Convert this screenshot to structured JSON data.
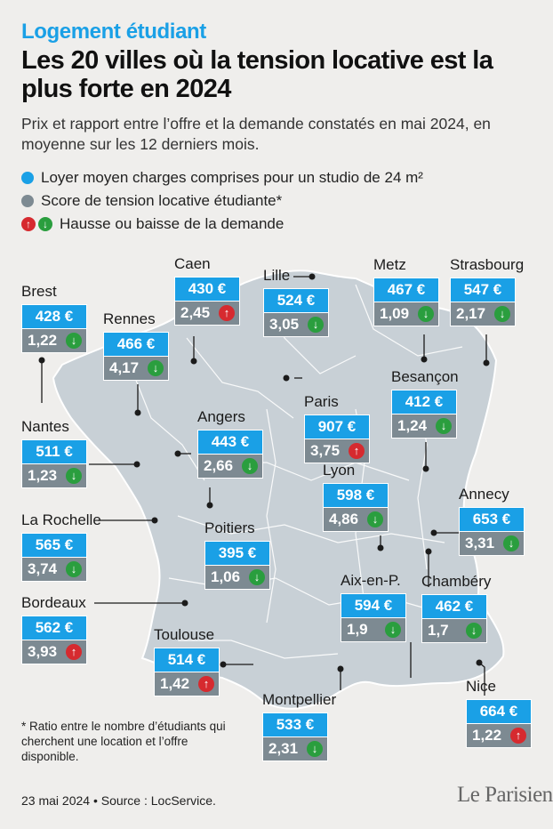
{
  "header": {
    "kicker": "Logement étudiant",
    "title": "Les 20 villes où la tension locative est la plus forte en 2024",
    "subtitle": "Prix et rapport entre l’offre et la demande constatés en mai 2024, en moyenne sur les 12 derniers mois."
  },
  "legend": {
    "rent": "Loyer moyen charges comprises pour un studio de 24 m²",
    "score": "Score de tension locative étudiante*",
    "trend": "Hausse ou baisse de la demande"
  },
  "icons": {
    "up": "arrow-up-icon",
    "down": "arrow-down-icon"
  },
  "colors": {
    "price": "#1aa0e6",
    "score": "#7d8a92",
    "up": "#d62a2f",
    "down": "#2a9e3e",
    "map": "#c8d0d6"
  },
  "cities": [
    {
      "name": "Brest",
      "rent": "428 €",
      "score": "1,22",
      "trend": "down"
    },
    {
      "name": "Rennes",
      "rent": "466 €",
      "score": "4,17",
      "trend": "down"
    },
    {
      "name": "Caen",
      "rent": "430 €",
      "score": "2,45",
      "trend": "up"
    },
    {
      "name": "Lille",
      "rent": "524 €",
      "score": "3,05",
      "trend": "down"
    },
    {
      "name": "Metz",
      "rent": "467 €",
      "score": "1,09",
      "trend": "down"
    },
    {
      "name": "Strasbourg",
      "rent": "547 €",
      "score": "2,17",
      "trend": "down"
    },
    {
      "name": "Paris",
      "rent": "907 €",
      "score": "3,75",
      "trend": "up"
    },
    {
      "name": "Besançon",
      "rent": "412 €",
      "score": "1,24",
      "trend": "down"
    },
    {
      "name": "Nantes",
      "rent": "511 €",
      "score": "1,23",
      "trend": "down"
    },
    {
      "name": "Angers",
      "rent": "443 €",
      "score": "2,66",
      "trend": "down"
    },
    {
      "name": "Lyon",
      "rent": "598 €",
      "score": "4,86",
      "trend": "down"
    },
    {
      "name": "Annecy",
      "rent": "653 €",
      "score": "3,31",
      "trend": "down"
    },
    {
      "name": "La Rochelle",
      "rent": "565 €",
      "score": "3,74",
      "trend": "down"
    },
    {
      "name": "Poitiers",
      "rent": "395 €",
      "score": "1,06",
      "trend": "down"
    },
    {
      "name": "Aix-en-P.",
      "rent": "594 €",
      "score": "1,9",
      "trend": "down"
    },
    {
      "name": "Chambéry",
      "rent": "462 €",
      "score": "1,7",
      "trend": "down"
    },
    {
      "name": "Bordeaux",
      "rent": "562 €",
      "score": "3,93",
      "trend": "up"
    },
    {
      "name": "Toulouse",
      "rent": "514 €",
      "score": "1,42",
      "trend": "up"
    },
    {
      "name": "Montpellier",
      "rent": "533 €",
      "score": "2,31",
      "trend": "down"
    },
    {
      "name": "Nice",
      "rent": "664 €",
      "score": "1,22",
      "trend": "up"
    }
  ],
  "footnote": "* Ratio entre le nombre d’étudiants qui cherchent une location et l’offre disponible.",
  "source": "23 mai 2024 • Source : LocService.",
  "logo": "Le Parisien"
}
